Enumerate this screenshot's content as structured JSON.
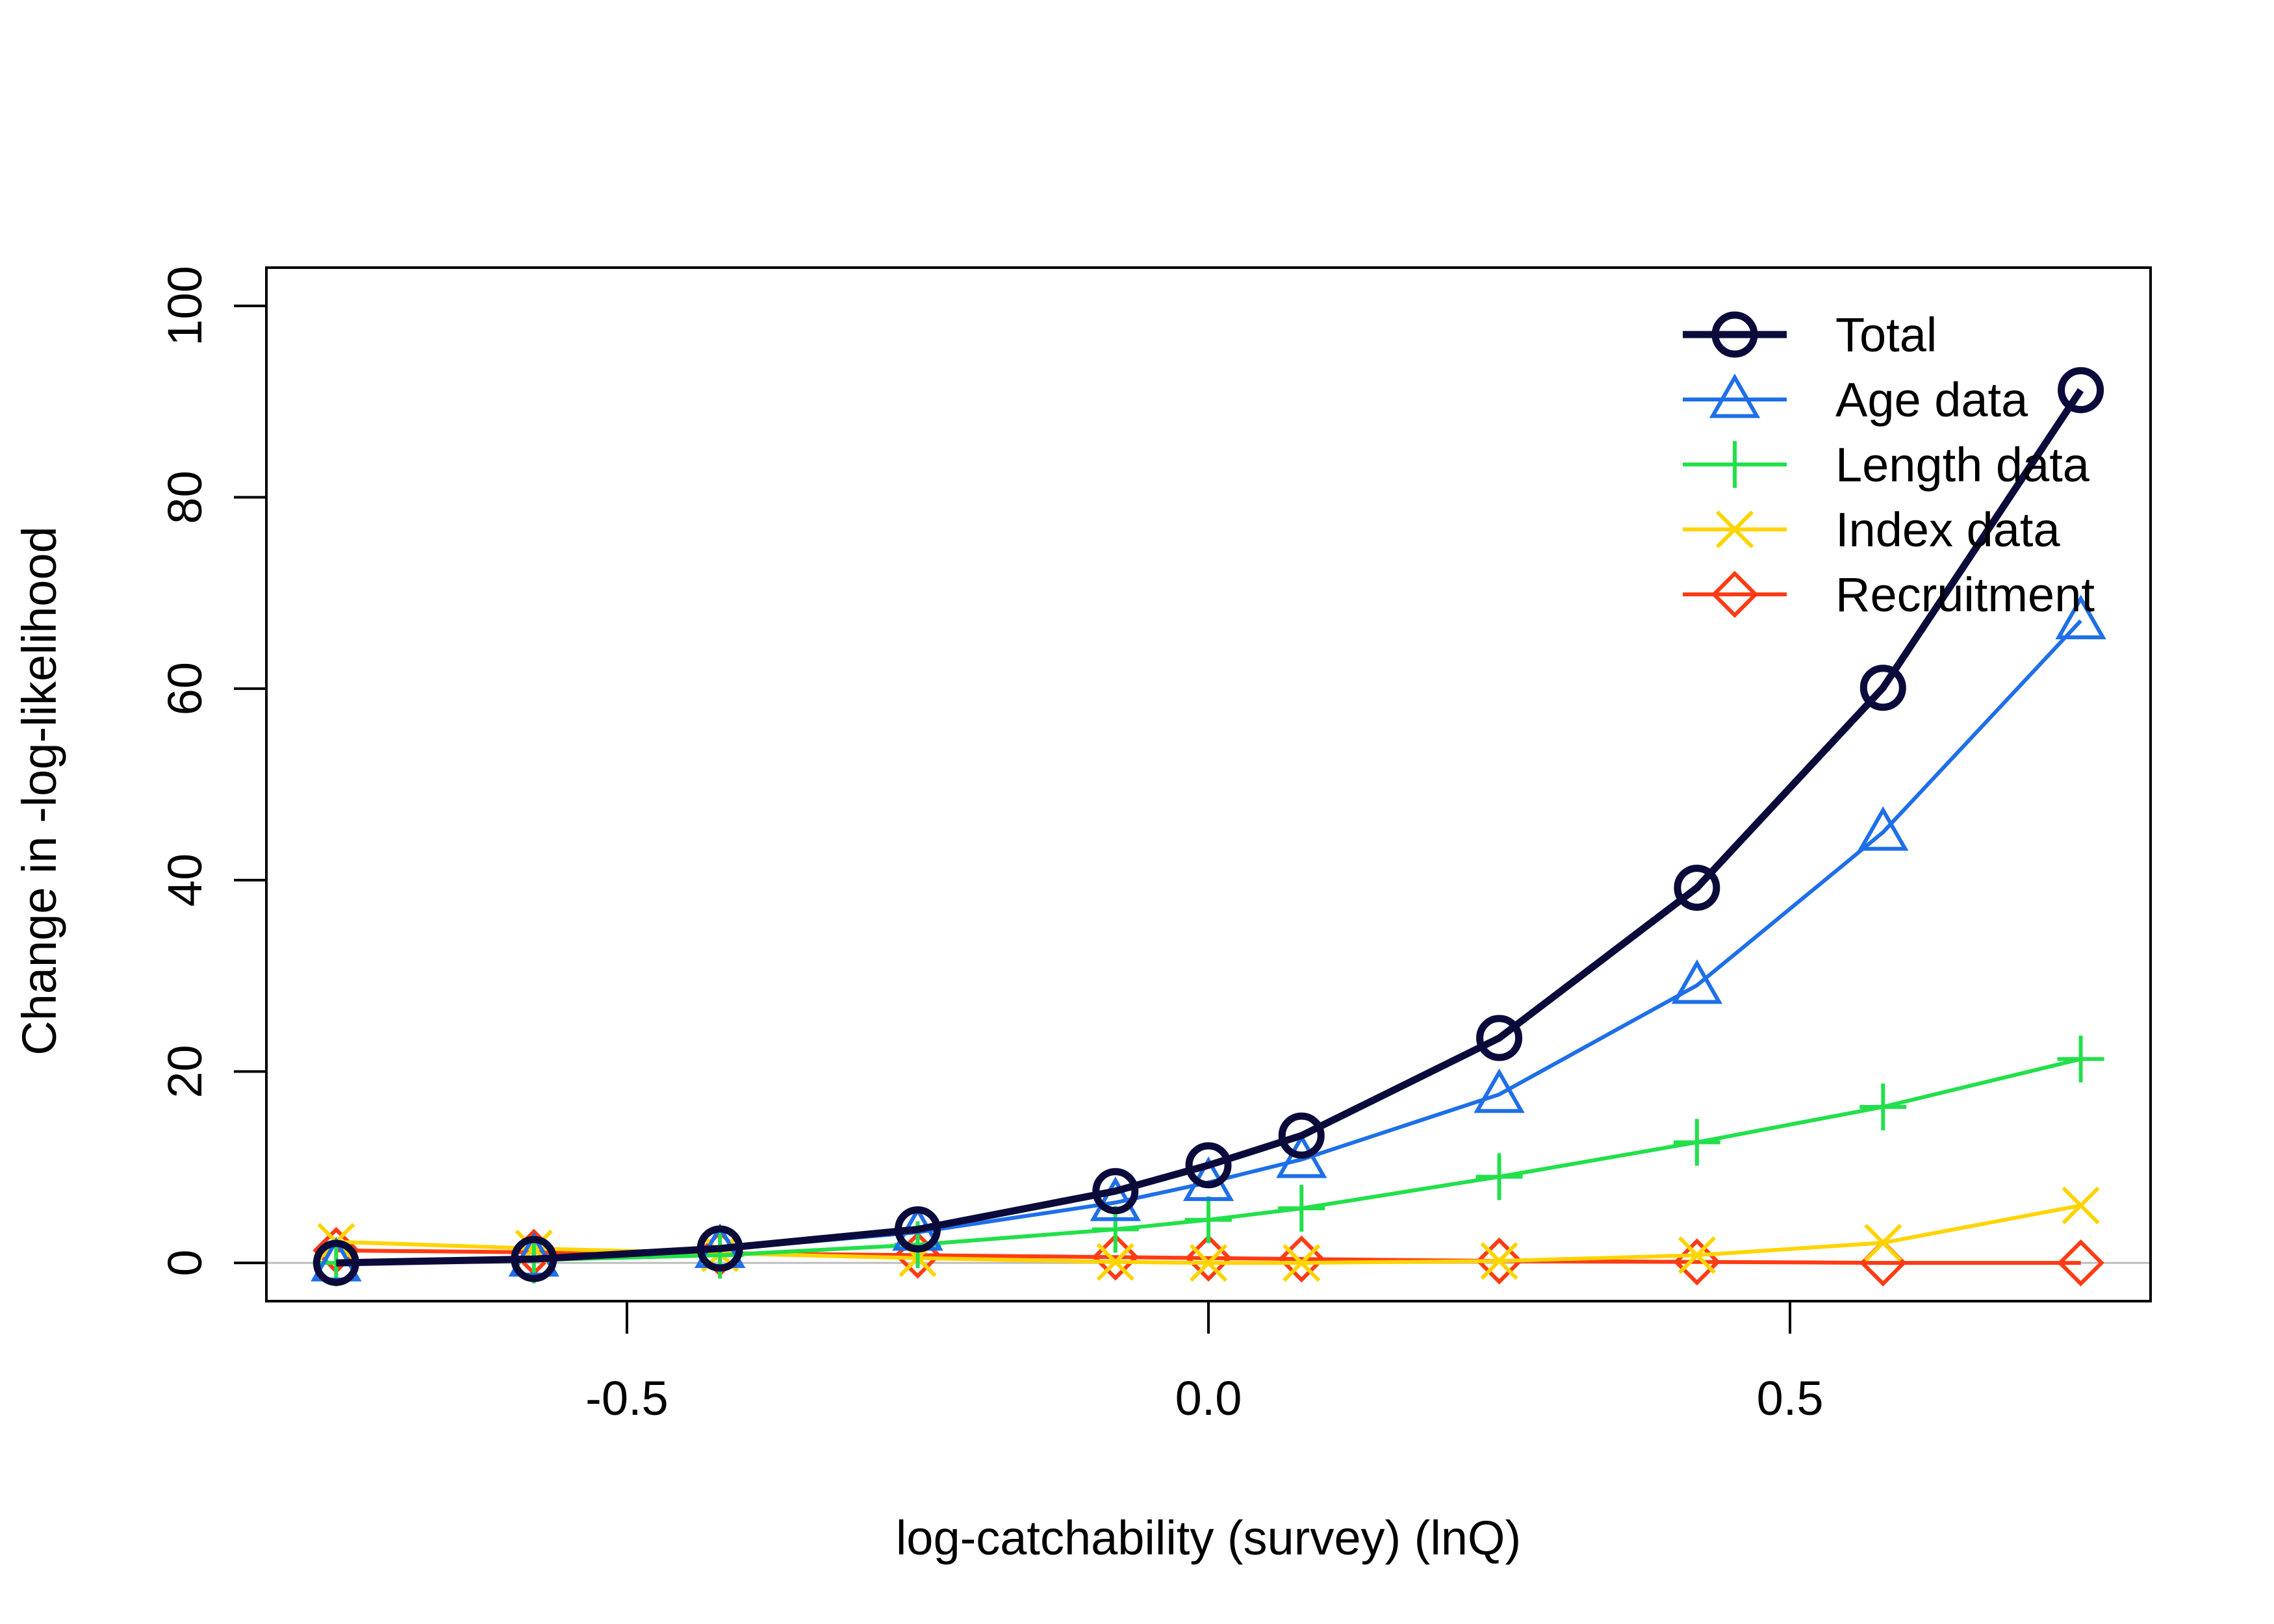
{
  "chart_data": {
    "type": "line",
    "title": "",
    "xlabel": "log-catchability (survey) (lnQ)",
    "ylabel": "Change in -log-likelihood",
    "xlim": [
      -0.81,
      0.81
    ],
    "ylim": [
      -4,
      104
    ],
    "x_ticks": [
      -0.5,
      0.0,
      0.5
    ],
    "x_tick_labels": [
      "-0.5",
      "0.0",
      "0.5"
    ],
    "y_ticks": [
      0,
      20,
      40,
      60,
      80,
      100
    ],
    "y_tick_labels": [
      "0",
      "20",
      "40",
      "60",
      "80",
      "100"
    ],
    "reference_line": 0,
    "grid": false,
    "legend_position": "top-right",
    "x": [
      -0.75,
      -0.58,
      -0.42,
      -0.25,
      -0.08,
      0.0,
      0.08,
      0.25,
      0.42,
      0.58,
      0.75
    ],
    "series": [
      {
        "name": "Total",
        "color": "#0b0b3b",
        "marker": "circle",
        "values": [
          0.0,
          0.4,
          1.5,
          3.5,
          7.5,
          10.2,
          13.3,
          23.5,
          39.2,
          60.1,
          91.2
        ]
      },
      {
        "name": "Age data",
        "color": "#1e6fe8",
        "marker": "triangle",
        "values": [
          0.0,
          0.5,
          1.4,
          3.2,
          6.3,
          8.4,
          10.8,
          17.6,
          29.0,
          45.0,
          67.1
        ]
      },
      {
        "name": "Length data",
        "color": "#22e04a",
        "marker": "plus",
        "values": [
          0.0,
          0.3,
          0.8,
          1.9,
          3.5,
          4.5,
          5.7,
          9.0,
          12.6,
          16.3,
          21.3
        ]
      },
      {
        "name": "Index data",
        "color": "#ffd400",
        "marker": "x",
        "values": [
          2.2,
          1.5,
          1.0,
          0.5,
          0.1,
          0.0,
          0.0,
          0.2,
          0.8,
          2.1,
          6.0
        ]
      },
      {
        "name": "Recruitment",
        "color": "#ff3b14",
        "marker": "diamond",
        "values": [
          1.3,
          1.1,
          1.0,
          0.8,
          0.6,
          0.5,
          0.4,
          0.2,
          0.1,
          0.0,
          0.0
        ]
      }
    ]
  }
}
